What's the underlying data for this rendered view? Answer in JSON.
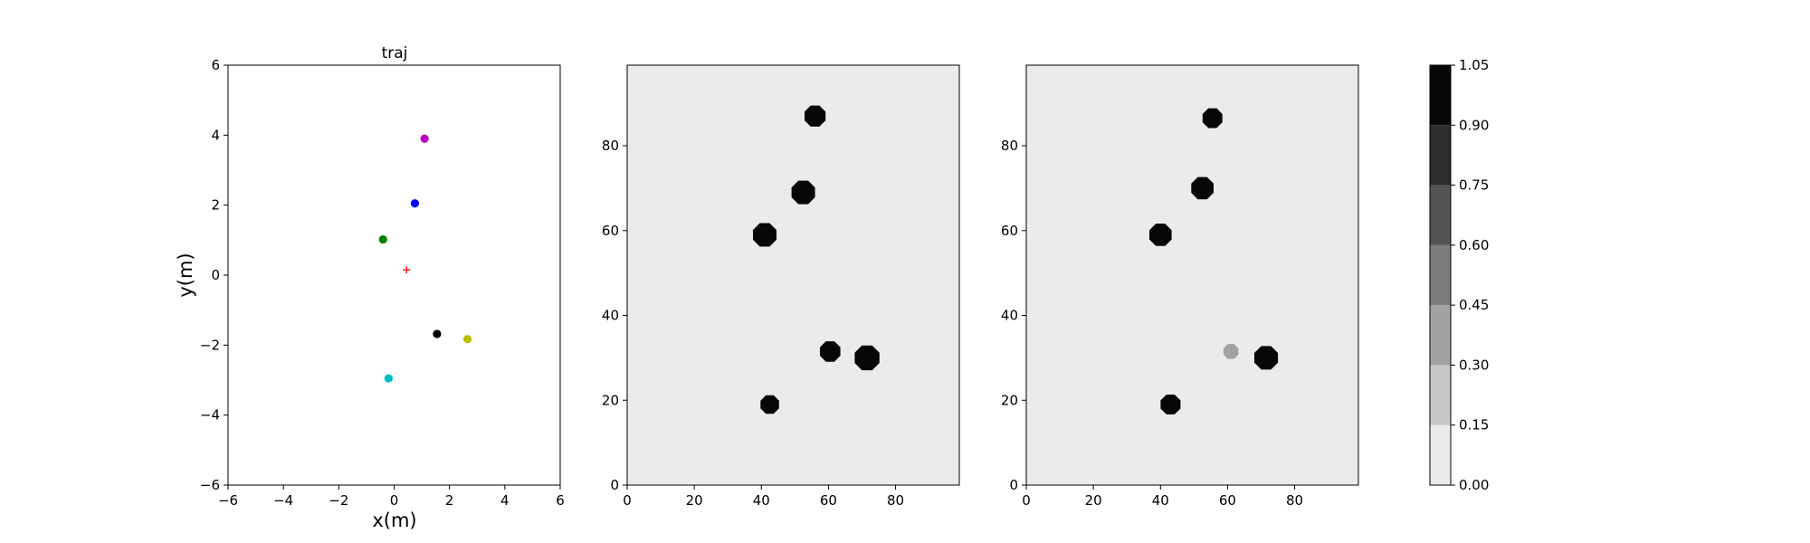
{
  "chart_data": [
    {
      "type": "scatter",
      "title": "traj",
      "xlabel": "x(m)",
      "ylabel": "y(m)",
      "xlim": [
        -6,
        6
      ],
      "ylim": [
        -6,
        6
      ],
      "xticks": [
        "−6",
        "−4",
        "−2",
        "0",
        "2",
        "4",
        "6"
      ],
      "yticks": [
        "−6",
        "−4",
        "−2",
        "0",
        "2",
        "4",
        "6"
      ],
      "grid": false,
      "points": [
        {
          "x": 1.1,
          "y": 3.9,
          "color": "#bf00bf",
          "marker": "circle"
        },
        {
          "x": 0.75,
          "y": 2.05,
          "color": "#0000ff",
          "marker": "circle"
        },
        {
          "x": -0.4,
          "y": 1.02,
          "color": "#008000",
          "marker": "circle"
        },
        {
          "x": 1.55,
          "y": -1.68,
          "color": "#000000",
          "marker": "circle"
        },
        {
          "x": 2.65,
          "y": -1.83,
          "color": "#bfbf00",
          "marker": "circle"
        },
        {
          "x": -0.2,
          "y": -2.95,
          "color": "#00bfbf",
          "marker": "circle"
        },
        {
          "x": 0.45,
          "y": 0.15,
          "color": "#ff0000",
          "marker": "plus"
        }
      ]
    },
    {
      "type": "heatmap",
      "xlim": [
        0,
        99
      ],
      "ylim": [
        0,
        99
      ],
      "xticks": [
        "0",
        "20",
        "40",
        "60",
        "80"
      ],
      "yticks": [
        "0",
        "20",
        "40",
        "60",
        "80"
      ],
      "background_value": 0.0,
      "blobs": [
        {
          "x": 56,
          "y": 87,
          "r": 3.4,
          "value": 1.0
        },
        {
          "x": 52.5,
          "y": 69,
          "r": 3.8,
          "value": 1.0
        },
        {
          "x": 41,
          "y": 59,
          "r": 3.8,
          "value": 1.0
        },
        {
          "x": 60.5,
          "y": 31.5,
          "r": 3.3,
          "value": 1.0
        },
        {
          "x": 71.5,
          "y": 30,
          "r": 4.0,
          "value": 1.0
        },
        {
          "x": 42.5,
          "y": 19,
          "r": 3.0,
          "value": 1.0
        }
      ]
    },
    {
      "type": "heatmap",
      "xlim": [
        0,
        99
      ],
      "ylim": [
        0,
        99
      ],
      "xticks": [
        "0",
        "20",
        "40",
        "60",
        "80"
      ],
      "yticks": [
        "0",
        "20",
        "40",
        "60",
        "80"
      ],
      "background_value": 0.0,
      "blobs": [
        {
          "x": 55.5,
          "y": 86.5,
          "r": 3.2,
          "value": 1.0
        },
        {
          "x": 52.5,
          "y": 70,
          "r": 3.6,
          "value": 1.0
        },
        {
          "x": 40,
          "y": 59,
          "r": 3.6,
          "value": 1.0
        },
        {
          "x": 61,
          "y": 31.5,
          "r": 2.4,
          "value": 0.4
        },
        {
          "x": 71.5,
          "y": 30,
          "r": 3.8,
          "value": 1.0
        },
        {
          "x": 43,
          "y": 19,
          "r": 3.2,
          "value": 1.0
        }
      ]
    }
  ],
  "colorbar": {
    "levels": [
      0.0,
      0.15,
      0.3,
      0.45,
      0.6,
      0.75,
      0.9,
      1.05
    ],
    "tick_labels": [
      "0.00",
      "0.15",
      "0.30",
      "0.45",
      "0.60",
      "0.75",
      "0.90",
      "1.05"
    ],
    "colors": [
      "#ebebeb",
      "#c8c8c8",
      "#a2a2a2",
      "#7c7c7c",
      "#545454",
      "#2c2c2c",
      "#070707"
    ]
  }
}
